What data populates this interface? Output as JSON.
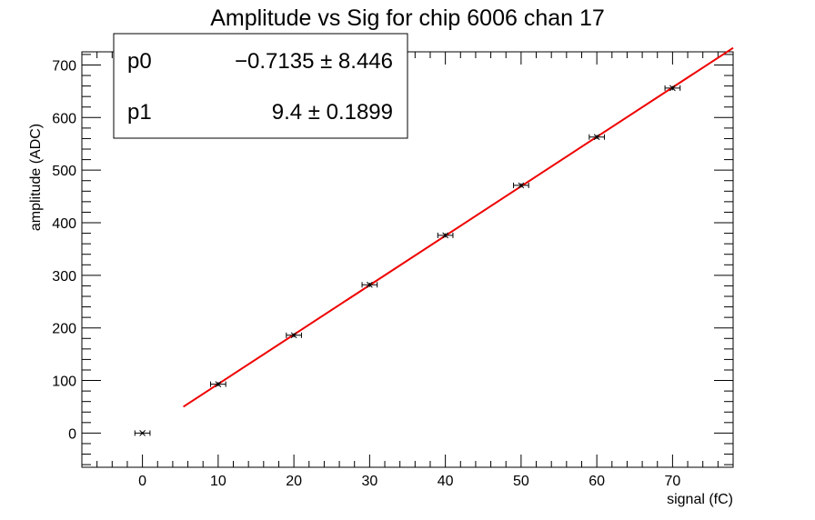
{
  "chart_data": {
    "type": "scatter",
    "title": "Amplitude vs Sig for chip 6006 chan 17",
    "xlabel": "signal (fC)",
    "ylabel": "amplitude (ADC)",
    "xlim": [
      -8,
      78
    ],
    "ylim": [
      -65,
      725
    ],
    "x_ticks": [
      0,
      10,
      20,
      30,
      40,
      50,
      60,
      70
    ],
    "y_ticks": [
      0,
      100,
      200,
      300,
      400,
      500,
      600,
      700
    ],
    "grid": false,
    "legend": "top-left",
    "points": [
      {
        "x": 0,
        "y": 0,
        "xerr": 1,
        "yerr": 2
      },
      {
        "x": 10,
        "y": 93,
        "xerr": 1,
        "yerr": 4
      },
      {
        "x": 20,
        "y": 186,
        "xerr": 1,
        "yerr": 4
      },
      {
        "x": 30,
        "y": 282,
        "xerr": 1,
        "yerr": 4
      },
      {
        "x": 40,
        "y": 376,
        "xerr": 1,
        "yerr": 4
      },
      {
        "x": 50,
        "y": 471,
        "xerr": 1,
        "yerr": 4
      },
      {
        "x": 60,
        "y": 563,
        "xerr": 1,
        "yerr": 4
      },
      {
        "x": 70,
        "y": 656,
        "xerr": 1,
        "yerr": 4
      }
    ],
    "fit": {
      "x_range": [
        5.4,
        78
      ],
      "p0": -0.7135,
      "p1": 9.4,
      "color": "#ee0000"
    },
    "stats": [
      {
        "name": "p0",
        "value": "−0.7135 ± 8.446"
      },
      {
        "name": "p1",
        "value": "9.4 ± 0.1899"
      }
    ]
  }
}
